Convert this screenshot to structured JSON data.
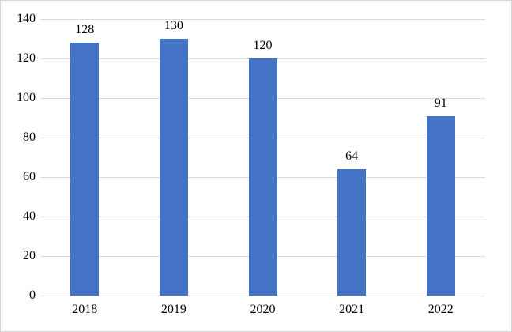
{
  "chart_data": {
    "type": "bar",
    "title": "",
    "xlabel": "",
    "ylabel": "",
    "categories": [
      "2018",
      "2019",
      "2020",
      "2021",
      "2022"
    ],
    "values": [
      128,
      130,
      120,
      64,
      91
    ],
    "ylim": [
      0,
      140
    ],
    "ytick_step": 20,
    "ytick_labels": [
      "0",
      "20",
      "40",
      "60",
      "80",
      "100",
      "120",
      "140"
    ],
    "grid": true,
    "legend": "none",
    "data_labels_shown": true,
    "colors": {
      "bar": "#4472c4",
      "gridline": "#d9d9d9",
      "chart_border": "#d6d6d6",
      "text": "#000000",
      "background": "#ffffff"
    }
  }
}
